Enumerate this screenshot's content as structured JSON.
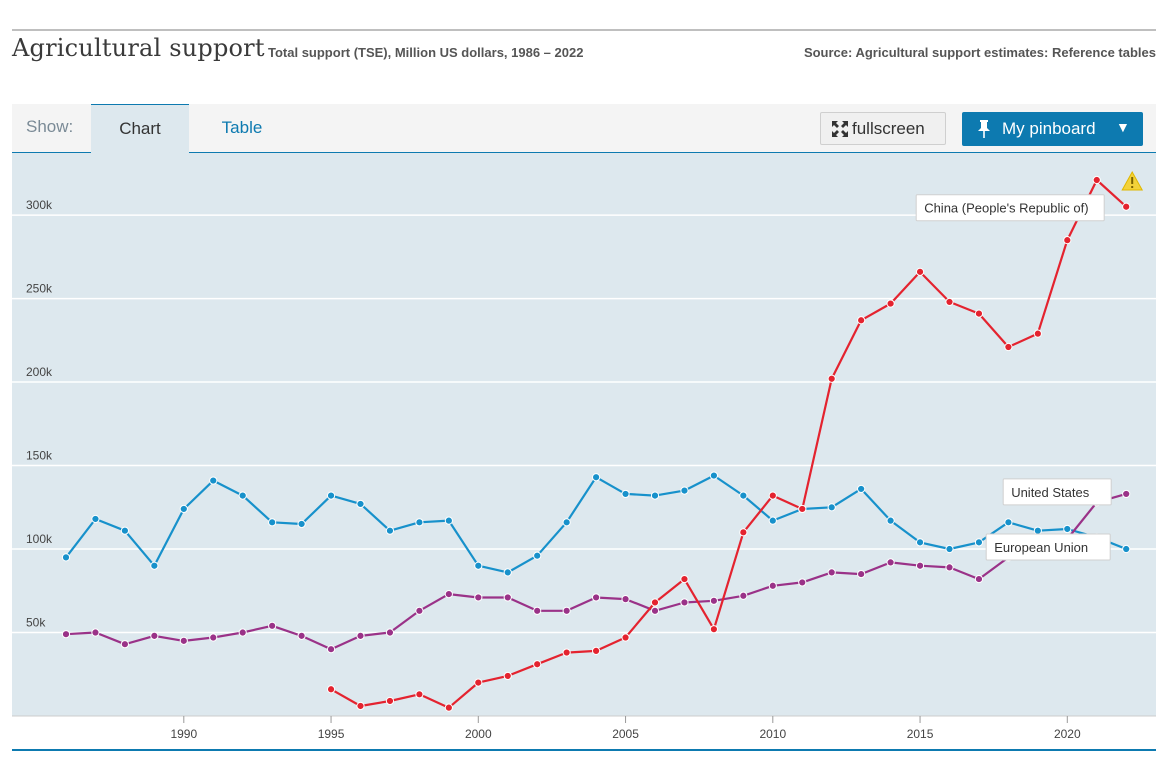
{
  "header": {
    "title": "Agricultural support",
    "subtitle": "Total support (TSE), Million US dollars, 1986 – 2022",
    "source": "Source: Agricultural support estimates: Reference tables"
  },
  "toolbar": {
    "show_label": "Show:",
    "tabs": [
      {
        "label": "Chart",
        "active": true
      },
      {
        "label": "Table",
        "active": false
      }
    ],
    "fullscreen_label": "fullscreen",
    "pinboard_label": "My pinboard",
    "pinboard_caret": "▼"
  },
  "colors": {
    "chart_bg": "#dde8ee",
    "grid": "#ffffff",
    "eu": "#1791cb",
    "us": "#9a3288",
    "china": "#e4232f",
    "accent": "#0d7ab0"
  },
  "chart_data": {
    "type": "line",
    "title": "",
    "xlabel": "",
    "ylabel": "",
    "xlim": [
      1985.4,
      1988.7
    ],
    "ylim": [
      0,
      330000
    ],
    "x_ticks": [
      1990,
      1995,
      2000,
      2005,
      2010,
      2015,
      2020
    ],
    "x_tick_labels": [
      "1990",
      "1995",
      "2000",
      "2005",
      "2010",
      "2015",
      "2020"
    ],
    "y_ticks": [
      50000,
      100000,
      150000,
      200000,
      250000,
      300000
    ],
    "y_tick_labels": [
      "50k",
      "100k",
      "150k",
      "200k",
      "250k",
      "300k"
    ],
    "grid": true,
    "legend": "none",
    "series": [
      {
        "name": "European Union",
        "label": "European Union",
        "color_key": "eu",
        "x": [
          1986,
          1987,
          1988,
          1989,
          1990,
          1991,
          1992,
          1993,
          1994,
          1995,
          1996,
          1997,
          1998,
          1999,
          2000,
          2001,
          2002,
          2003,
          2004,
          2005,
          2006,
          2007,
          2008,
          2009,
          2010,
          2011,
          2012,
          2013,
          2014,
          2015,
          2016,
          2017,
          2018,
          2019,
          2020,
          2021,
          2022
        ],
        "y": [
          95000,
          118000,
          111000,
          90000,
          124000,
          141000,
          132000,
          116000,
          115000,
          132000,
          127000,
          111000,
          116000,
          117000,
          90000,
          86000,
          96000,
          116000,
          143000,
          133000,
          132000,
          135000,
          144000,
          132000,
          117000,
          124000,
          125000,
          136000,
          117000,
          104000,
          100000,
          104000,
          116000,
          111000,
          112000,
          107000,
          100000
        ]
      },
      {
        "name": "United States",
        "label": "United States",
        "color_key": "us",
        "x": [
          1986,
          1987,
          1988,
          1989,
          1990,
          1991,
          1992,
          1993,
          1994,
          1995,
          1996,
          1997,
          1998,
          1999,
          2000,
          2001,
          2002,
          2003,
          2004,
          2005,
          2006,
          2007,
          2008,
          2009,
          2010,
          2011,
          2012,
          2013,
          2014,
          2015,
          2016,
          2017,
          2018,
          2019,
          2020,
          2021,
          2022
        ],
        "y": [
          49000,
          50000,
          43000,
          48000,
          45000,
          47000,
          50000,
          54000,
          48000,
          40000,
          48000,
          50000,
          63000,
          73000,
          71000,
          71000,
          63000,
          63000,
          71000,
          70000,
          63000,
          68000,
          69000,
          72000,
          78000,
          80000,
          86000,
          85000,
          92000,
          90000,
          89000,
          82000,
          95000,
          97000,
          106000,
          128000,
          133000
        ]
      },
      {
        "name": "China (People's Republic of)",
        "label": "China (People's Republic of)",
        "color_key": "china",
        "x": [
          1995,
          1996,
          1997,
          1998,
          1999,
          2000,
          2001,
          2002,
          2003,
          2004,
          2005,
          2006,
          2007,
          2008,
          2009,
          2010,
          2011,
          2012,
          2013,
          2014,
          2015,
          2016,
          2017,
          2018,
          2019,
          2020,
          2021,
          2022
        ],
        "y": [
          16000,
          6000,
          9000,
          13000,
          5000,
          20000,
          24000,
          31000,
          38000,
          39000,
          47000,
          68000,
          82000,
          52000,
          110000,
          132000,
          124000,
          202000,
          237000,
          247000,
          266000,
          248000,
          241000,
          221000,
          229000,
          285000,
          321000,
          305000
        ]
      }
    ]
  }
}
